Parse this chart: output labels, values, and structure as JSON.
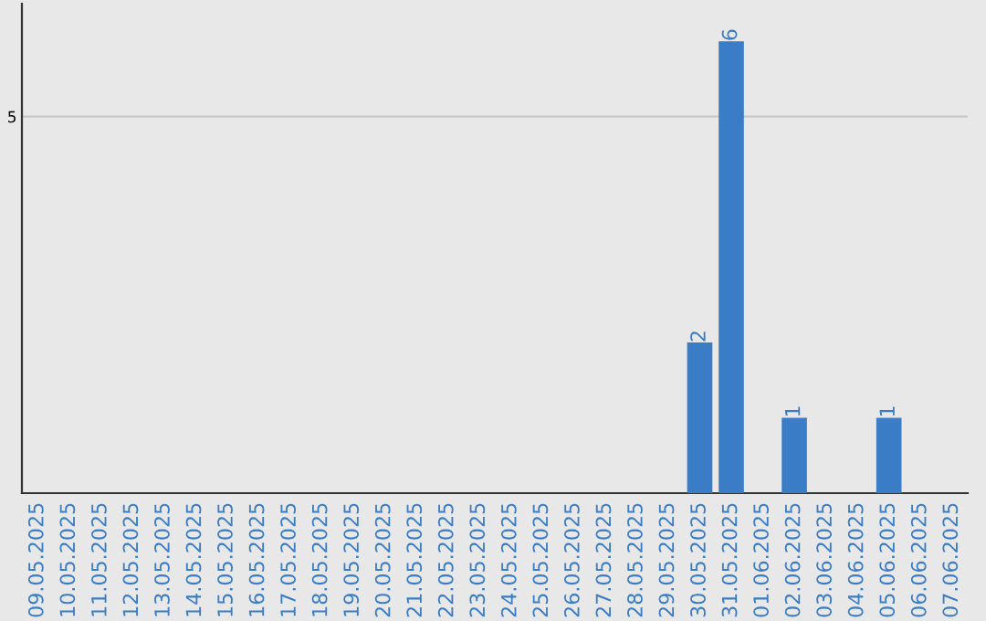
{
  "chart_data": {
    "type": "bar",
    "categories": [
      "09.05.2025",
      "10.05.2025",
      "11.05.2025",
      "12.05.2025",
      "13.05.2025",
      "14.05.2025",
      "15.05.2025",
      "16.05.2025",
      "17.05.2025",
      "18.05.2025",
      "19.05.2025",
      "20.05.2025",
      "21.05.2025",
      "22.05.2025",
      "23.05.2025",
      "24.05.2025",
      "25.05.2025",
      "26.05.2025",
      "27.05.2025",
      "28.05.2025",
      "29.05.2025",
      "30.05.2025",
      "31.05.2025",
      "01.06.2025",
      "02.06.2025",
      "03.06.2025",
      "04.06.2025",
      "05.06.2025",
      "06.06.2025",
      "07.06.2025"
    ],
    "values": [
      null,
      null,
      null,
      null,
      null,
      null,
      null,
      null,
      null,
      null,
      null,
      null,
      null,
      null,
      null,
      null,
      null,
      null,
      null,
      null,
      null,
      2,
      6,
      null,
      1,
      null,
      null,
      1,
      null,
      null
    ],
    "data_labels": true,
    "color": "#3a7cc5",
    "ylim": [
      0,
      6.5
    ],
    "yticks": [
      5
    ],
    "grid": "y"
  }
}
